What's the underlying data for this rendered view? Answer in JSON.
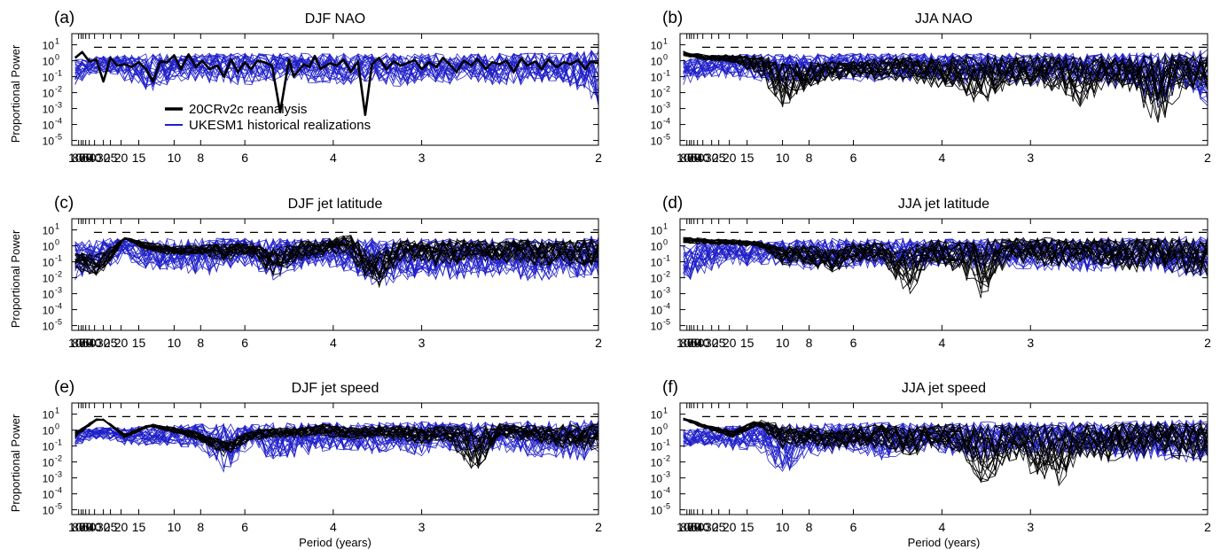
{
  "figure": {
    "legend": {
      "items": [
        {
          "label": "20CRv2c reanalysis",
          "color": "#000000"
        },
        {
          "label": "UKESM1 historical realizations",
          "color": "#1f1fc8"
        }
      ]
    }
  },
  "chart_data": [
    {
      "type": "line",
      "panel_label": "(a)",
      "title": "DJF NAO",
      "ylabel": "Proportional Power",
      "xlabel": "",
      "x_scale": "reciprocal (frequency)",
      "y_scale": "log",
      "ylim": [
        5e-06,
        50
      ],
      "x_ticks": [
        "100",
        "80",
        "70",
        "60",
        "50",
        "40",
        "30",
        "25",
        "20",
        "15",
        "10",
        "8",
        "6",
        "4",
        "3",
        "2"
      ],
      "y_ticks": [
        "10^1",
        "10^0",
        "10^-1",
        "10^-2",
        "10^-3",
        "10^-4",
        "10^-5"
      ],
      "dashed_threshold": 7,
      "series": [
        {
          "name": "20CRv2c reanalysis",
          "color": "#000000",
          "x": [
            150,
            75,
            50,
            37.5,
            30,
            25,
            21.4,
            18.75,
            16.7,
            15,
            13.6,
            12.5,
            11.5,
            10.7,
            10,
            9.4,
            8.8,
            8.3,
            7.9,
            7.5,
            7.1,
            6.8,
            6.5,
            6.25,
            6,
            5.8,
            5.6,
            5.4,
            5.2,
            5,
            4.8,
            4.7,
            4.5,
            4.4,
            4.3,
            4.2,
            4.05,
            3.95,
            3.85,
            3.75,
            3.66,
            3.57,
            3.49,
            3.41,
            3.33,
            3.26,
            3.19,
            3.13,
            3.06,
            3,
            2.94,
            2.88,
            2.83,
            2.78,
            2.73,
            2.68,
            2.63,
            2.59,
            2.54,
            2.5,
            2.46,
            2.42,
            2.38,
            2.34,
            2.31,
            2.27,
            2.24,
            2.21,
            2.17,
            2.14,
            2.11,
            2.08,
            2.05,
            2.03,
            2
          ],
          "values": [
            1.5,
            3.5,
            0.9,
            1.2,
            0.05,
            1.5,
            0.5,
            0.6,
            0.4,
            0.8,
            0.3,
            0.05,
            0.9,
            0.8,
            2.2,
            0.3,
            2.5,
            0.4,
            1.0,
            0.3,
            0.5,
            0.1,
            1.2,
            0.2,
            0.8,
            0.3,
            1.0,
            0.8,
            0.5,
            0.0006,
            1.2,
            0.1,
            0.6,
            0.4,
            2.0,
            0.3,
            0.7,
            0.5,
            1.2,
            0.2,
            0.9,
            0.0004,
            0.6,
            1.5,
            0.3,
            0.9,
            0.5,
            0.7,
            1.1,
            0.3,
            0.8,
            0.4,
            1.5,
            0.6,
            0.2,
            1.0,
            0.5,
            1.3,
            0.3,
            0.8,
            0.6,
            1.0,
            0.2,
            1.4,
            0.5,
            0.9,
            0.3,
            1.2,
            0.4,
            0.8,
            0.6,
            1.1,
            0.3,
            0.9,
            0.7
          ]
        },
        {
          "name": "UKESM1 historical realizations",
          "color": "#1f1fc8",
          "ensemble_members": 24,
          "envelope_low": [
            0.03,
            0.2,
            0.05,
            0.01,
            0.05,
            0.05,
            0.03,
            0.03,
            0.05,
            0.05,
            0.03,
            0.03,
            0.05,
            0.02,
            0.05,
            0.03,
            0.05,
            0.02,
            0.03,
            0.05,
            0.02,
            0.001
          ],
          "envelope_high": [
            1.2,
            2.0,
            2.5,
            3.0,
            2.5,
            3.0,
            3.0,
            3.0,
            3.0,
            3.0,
            3.0,
            3.0,
            3.0,
            3.0,
            3.5,
            3.0,
            3.0,
            3.0,
            3.5,
            3.0,
            4.0,
            5.0
          ]
        }
      ]
    },
    {
      "type": "line",
      "panel_label": "(b)",
      "title": "JJA NAO",
      "ylabel": "",
      "xlabel": "",
      "x_scale": "reciprocal (frequency)",
      "y_scale": "log",
      "ylim": [
        5e-06,
        50
      ],
      "x_ticks": [
        "100",
        "80",
        "70",
        "60",
        "50",
        "40",
        "30",
        "25",
        "20",
        "15",
        "10",
        "8",
        "6",
        "4",
        "3",
        "2"
      ],
      "y_ticks": [
        "10^1",
        "10^0",
        "10^-1",
        "10^-2",
        "10^-3",
        "10^-4",
        "10^-5"
      ],
      "dashed_threshold": 7,
      "series": [
        {
          "name": "20CRv2c reanalysis",
          "color": "#000000",
          "ensemble_members": 20,
          "envelope_low": [
            2.0,
            1.0,
            0.7,
            0.1,
            0.001,
            0.02,
            0.05,
            0.1,
            0.05,
            0.05,
            0.02,
            0.01,
            0.001,
            0.02,
            0.02,
            0.01,
            0.001,
            0.02,
            0.01,
            5e-05,
            0.01,
            0.01
          ],
          "envelope_high": [
            4.0,
            2.2,
            2.5,
            2.5,
            0.8,
            0.8,
            1.0,
            1.0,
            1.5,
            2.0,
            1.5,
            2.0,
            4.0,
            2.0,
            2.0,
            2.0,
            2.0,
            2.0,
            2.0,
            2.5,
            2.5,
            2.5
          ]
        },
        {
          "name": "UKESM1 historical realizations",
          "color": "#1f1fc8",
          "ensemble_members": 24,
          "envelope_low": [
            0.03,
            0.1,
            0.05,
            0.05,
            0.03,
            0.03,
            0.05,
            0.05,
            0.03,
            0.05,
            0.05,
            0.03,
            0.05,
            0.03,
            0.02,
            0.05,
            0.03,
            0.02,
            0.02,
            0.001,
            0.02,
            0.001
          ],
          "envelope_high": [
            1.2,
            2.0,
            2.5,
            3.0,
            2.5,
            3.0,
            3.0,
            3.0,
            3.0,
            3.0,
            3.0,
            3.0,
            3.0,
            3.0,
            3.5,
            3.0,
            3.0,
            3.0,
            3.5,
            3.0,
            4.0,
            5.0
          ]
        }
      ]
    },
    {
      "type": "line",
      "panel_label": "(c)",
      "title": "DJF jet latitude",
      "ylabel": "Proportional Power",
      "xlabel": "",
      "x_scale": "reciprocal (frequency)",
      "y_scale": "log",
      "ylim": [
        5e-06,
        50
      ],
      "x_ticks": [
        "100",
        "80",
        "70",
        "60",
        "50",
        "40",
        "30",
        "25",
        "20",
        "15",
        "10",
        "8",
        "6",
        "4",
        "3",
        "2"
      ],
      "y_ticks": [
        "10^1",
        "10^0",
        "10^-1",
        "10^-2",
        "10^-3",
        "10^-4",
        "10^-5"
      ],
      "dashed_threshold": 7,
      "series": [
        {
          "name": "20CRv2c reanalysis",
          "color": "#000000",
          "ensemble_members": 20,
          "envelope_low": [
            0.03,
            0.01,
            2.5,
            0.3,
            0.2,
            0.3,
            0.1,
            0.2,
            0.01,
            0.1,
            0.2,
            0.3,
            0.001,
            0.1,
            0.05,
            0.05,
            0.1,
            0.1,
            0.05,
            0.05,
            0.05,
            0.05
          ],
          "envelope_high": [
            0.4,
            0.3,
            3.5,
            1.5,
            1.0,
            1.2,
            1.5,
            1.5,
            0.7,
            2.0,
            2.5,
            6.0,
            0.3,
            2.5,
            2.0,
            2.5,
            2.5,
            2.0,
            2.5,
            2.0,
            2.5,
            2.5
          ]
        },
        {
          "name": "UKESM1 historical realizations",
          "color": "#1f1fc8",
          "ensemble_members": 24,
          "envelope_low": [
            0.005,
            0.03,
            0.1,
            0.03,
            0.03,
            0.01,
            0.03,
            0.05,
            0.005,
            0.03,
            0.05,
            0.02,
            0.002,
            0.005,
            0.01,
            0.005,
            0.01,
            0.01,
            0.005,
            0.005,
            0.01,
            0.01
          ],
          "envelope_high": [
            2.0,
            3.0,
            3.0,
            3.0,
            3.0,
            3.0,
            3.0,
            3.0,
            3.0,
            3.0,
            3.0,
            3.0,
            3.5,
            3.0,
            3.0,
            3.0,
            3.0,
            3.0,
            3.0,
            3.0,
            4.0,
            5.0
          ]
        }
      ]
    },
    {
      "type": "line",
      "panel_label": "(d)",
      "title": "JJA jet latitude",
      "ylabel": "",
      "xlabel": "",
      "x_scale": "reciprocal (frequency)",
      "y_scale": "log",
      "ylim": [
        5e-06,
        50
      ],
      "x_ticks": [
        "100",
        "80",
        "70",
        "60",
        "50",
        "40",
        "30",
        "25",
        "20",
        "15",
        "10",
        "8",
        "6",
        "4",
        "3",
        "2"
      ],
      "y_ticks": [
        "10^1",
        "10^0",
        "10^-1",
        "10^-2",
        "10^-3",
        "10^-4",
        "10^-5"
      ],
      "dashed_threshold": 7,
      "series": [
        {
          "name": "20CRv2c reanalysis",
          "color": "#000000",
          "ensemble_members": 20,
          "envelope_low": [
            1.5,
            1.2,
            1.0,
            0.8,
            0.05,
            0.05,
            0.02,
            0.1,
            0.1,
            0.0005,
            0.05,
            0.02,
            0.0003,
            0.1,
            0.05,
            0.05,
            0.1,
            0.05,
            0.02,
            0.05,
            0.01,
            0.01
          ],
          "envelope_high": [
            3.5,
            3.0,
            2.5,
            2.0,
            1.0,
            1.2,
            0.8,
            2.0,
            1.5,
            1.0,
            2.5,
            2.0,
            2.5,
            3.0,
            3.5,
            3.0,
            3.0,
            3.0,
            3.5,
            3.0,
            3.5,
            3.0
          ]
        },
        {
          "name": "UKESM1 historical realizations",
          "color": "#1f1fc8",
          "ensemble_members": 24,
          "envelope_low": [
            0.005,
            0.02,
            0.05,
            0.05,
            0.05,
            0.03,
            0.03,
            0.03,
            0.05,
            0.03,
            0.05,
            0.03,
            0.03,
            0.05,
            0.02,
            0.03,
            0.02,
            0.02,
            0.03,
            0.02,
            0.01,
            0.01
          ],
          "envelope_high": [
            1.0,
            2.0,
            2.5,
            2.5,
            2.5,
            2.5,
            3.0,
            3.0,
            3.0,
            3.0,
            3.0,
            3.0,
            3.0,
            3.0,
            3.0,
            3.0,
            3.0,
            3.5,
            3.0,
            3.5,
            4.0,
            4.0
          ]
        }
      ]
    },
    {
      "type": "line",
      "panel_label": "(e)",
      "title": "DJF jet speed",
      "ylabel": "Proportional Power",
      "xlabel": "Period (years)",
      "x_scale": "reciprocal (frequency)",
      "y_scale": "log",
      "ylim": [
        5e-06,
        50
      ],
      "x_ticks": [
        "100",
        "80",
        "70",
        "60",
        "50",
        "40",
        "30",
        "25",
        "20",
        "15",
        "10",
        "8",
        "6",
        "4",
        "3",
        "2"
      ],
      "y_ticks": [
        "10^1",
        "10^0",
        "10^-1",
        "10^-2",
        "10^-3",
        "10^-4",
        "10^-5"
      ],
      "dashed_threshold": 7,
      "series": [
        {
          "name": "20CRv2c reanalysis",
          "color": "#000000",
          "ensemble_members": 20,
          "envelope_low": [
            0.3,
            6.0,
            0.3,
            1.5,
            0.6,
            0.2,
            0.02,
            0.2,
            0.3,
            0.3,
            0.4,
            0.2,
            0.3,
            0.2,
            0.1,
            0.2,
            0.001,
            0.3,
            0.2,
            0.1,
            0.05,
            0.05
          ],
          "envelope_high": [
            0.8,
            7.0,
            0.6,
            2.5,
            1.5,
            0.8,
            0.2,
            1.0,
            1.5,
            1.5,
            2.5,
            1.5,
            2.0,
            2.0,
            1.5,
            2.0,
            1.5,
            2.5,
            2.0,
            2.0,
            2.5,
            2.5
          ]
        },
        {
          "name": "UKESM1 historical realizations",
          "color": "#1f1fc8",
          "ensemble_members": 24,
          "envelope_low": [
            0.1,
            0.3,
            0.1,
            0.1,
            0.1,
            0.05,
            0.002,
            0.05,
            0.01,
            0.02,
            0.05,
            0.05,
            0.03,
            0.05,
            0.02,
            0.05,
            0.02,
            0.05,
            0.02,
            0.02,
            0.01,
            0.01
          ],
          "envelope_high": [
            1.0,
            1.5,
            1.5,
            2.0,
            2.0,
            2.5,
            2.5,
            2.5,
            3.0,
            3.0,
            3.0,
            3.0,
            3.0,
            3.0,
            3.5,
            3.0,
            3.5,
            3.0,
            4.0,
            3.5,
            4.0,
            4.5
          ]
        }
      ]
    },
    {
      "type": "line",
      "panel_label": "(f)",
      "title": "JJA jet speed",
      "ylabel": "",
      "xlabel": "Period (years)",
      "x_scale": "reciprocal (frequency)",
      "y_scale": "log",
      "ylim": [
        5e-06,
        50
      ],
      "x_ticks": [
        "100",
        "80",
        "70",
        "60",
        "50",
        "40",
        "30",
        "25",
        "20",
        "15",
        "10",
        "8",
        "6",
        "4",
        "3",
        "2"
      ],
      "y_ticks": [
        "10^1",
        "10^0",
        "10^-1",
        "10^-2",
        "10^-3",
        "10^-4",
        "10^-5"
      ],
      "dashed_threshold": 7,
      "series": [
        {
          "name": "20CRv2c reanalysis",
          "color": "#000000",
          "ensemble_members": 20,
          "envelope_low": [
            4.0,
            1.0,
            0.3,
            2.0,
            0.05,
            0.1,
            0.05,
            0.1,
            0.05,
            0.02,
            0.05,
            0.05,
            0.0001,
            0.01,
            0.001,
            0.0002,
            0.02,
            0.01,
            0.01,
            0.05,
            0.01,
            0.01
          ],
          "envelope_high": [
            6.0,
            2.0,
            1.0,
            4.5,
            2.5,
            1.5,
            1.0,
            2.0,
            2.5,
            1.5,
            2.5,
            2.5,
            2.0,
            2.5,
            2.5,
            2.0,
            3.0,
            2.5,
            3.0,
            3.5,
            3.0,
            3.0
          ]
        },
        {
          "name": "UKESM1 historical realizations",
          "color": "#1f1fc8",
          "ensemble_members": 24,
          "envelope_low": [
            0.08,
            0.1,
            0.05,
            0.05,
            0.001,
            0.02,
            0.03,
            0.03,
            0.01,
            0.03,
            0.05,
            0.02,
            0.01,
            0.03,
            0.02,
            0.02,
            0.02,
            0.02,
            0.01,
            0.01,
            0.01,
            0.01
          ],
          "envelope_high": [
            1.0,
            1.5,
            2.0,
            2.5,
            2.5,
            2.5,
            3.0,
            3.0,
            3.0,
            3.0,
            3.0,
            3.0,
            3.5,
            3.0,
            3.5,
            3.0,
            3.5,
            3.5,
            4.0,
            4.0,
            4.5,
            5.0
          ]
        }
      ]
    }
  ]
}
